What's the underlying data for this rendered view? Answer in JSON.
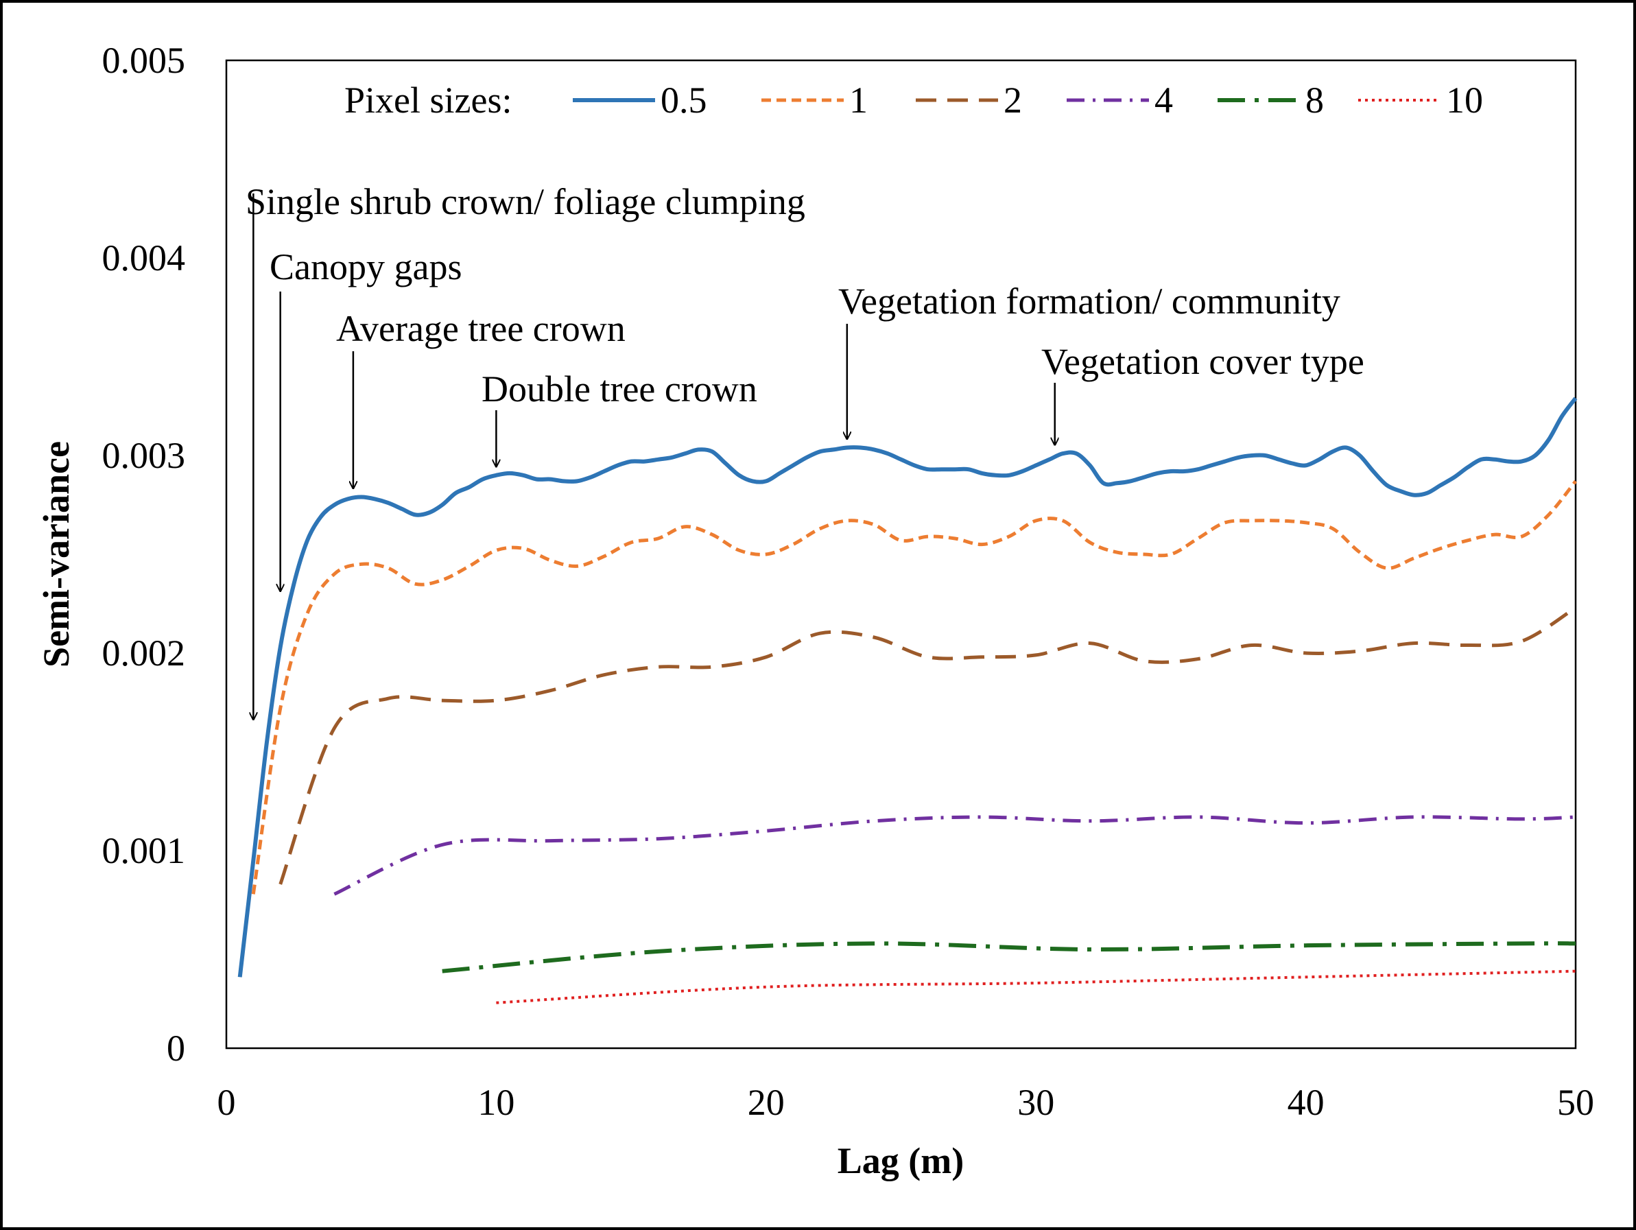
{
  "chart_data": {
    "type": "line",
    "xlabel": "Lag (m)",
    "ylabel": "Semi-variance",
    "xlim": [
      0,
      50
    ],
    "ylim": [
      0,
      0.005
    ],
    "x_ticks": [
      "0",
      "10",
      "20",
      "30",
      "40",
      "50"
    ],
    "y_ticks": [
      "0",
      "0.001",
      "0.002",
      "0.003",
      "0.004",
      "0.005"
    ],
    "grid": false,
    "legend": {
      "title": "Pixel sizes:",
      "placement": "top",
      "entries": [
        "0.5",
        "1",
        "2",
        "4",
        "8",
        "10"
      ]
    },
    "series": [
      {
        "name": "0.5",
        "color": "#2E75B6",
        "style": "solid",
        "x": [
          0.5,
          1.0,
          1.5,
          2.0,
          2.5,
          3.0,
          3.5,
          4.0,
          4.5,
          5.0,
          5.5,
          6.0,
          6.5,
          7.0,
          7.5,
          8.0,
          8.5,
          9.0,
          9.5,
          10.0,
          10.5,
          11.0,
          11.5,
          12.0,
          12.5,
          13.0,
          13.5,
          14.0,
          14.5,
          15.0,
          15.5,
          16.0,
          16.5,
          17.0,
          17.5,
          18.0,
          18.5,
          19.0,
          19.5,
          20.0,
          20.5,
          21.0,
          21.5,
          22.0,
          22.5,
          23.0,
          23.5,
          24.0,
          24.5,
          25.0,
          25.5,
          26.0,
          26.5,
          27.0,
          27.5,
          28.0,
          28.5,
          29.0,
          29.5,
          30.0,
          30.5,
          31.0,
          31.5,
          32.0,
          32.5,
          33.0,
          33.5,
          34.0,
          34.5,
          35.0,
          35.5,
          36.0,
          36.5,
          37.0,
          37.5,
          38.0,
          38.5,
          39.0,
          39.5,
          40.0,
          40.5,
          41.0,
          41.5,
          42.0,
          42.5,
          43.0,
          43.5,
          44.0,
          44.5,
          45.0,
          45.5,
          46.0,
          46.5,
          47.0,
          47.5,
          48.0,
          48.5,
          49.0,
          49.5,
          50.0
        ],
        "y": [
          0.00036,
          0.00095,
          0.00155,
          0.00203,
          0.00235,
          0.00257,
          0.00269,
          0.00275,
          0.00278,
          0.00279,
          0.00278,
          0.00276,
          0.00273,
          0.0027,
          0.00271,
          0.00275,
          0.00281,
          0.00284,
          0.00288,
          0.0029,
          0.00291,
          0.0029,
          0.00288,
          0.00288,
          0.00287,
          0.00287,
          0.00289,
          0.00292,
          0.00295,
          0.00297,
          0.00297,
          0.00298,
          0.00299,
          0.00301,
          0.00303,
          0.00302,
          0.00296,
          0.0029,
          0.00287,
          0.00287,
          0.00291,
          0.00295,
          0.00299,
          0.00302,
          0.00303,
          0.00304,
          0.00304,
          0.00303,
          0.00301,
          0.00298,
          0.00295,
          0.00293,
          0.00293,
          0.00293,
          0.00293,
          0.00291,
          0.0029,
          0.0029,
          0.00292,
          0.00295,
          0.00298,
          0.00301,
          0.00301,
          0.00295,
          0.00286,
          0.00286,
          0.00287,
          0.00289,
          0.00291,
          0.00292,
          0.00292,
          0.00293,
          0.00295,
          0.00297,
          0.00299,
          0.003,
          0.003,
          0.00298,
          0.00296,
          0.00295,
          0.00298,
          0.00302,
          0.00304,
          0.003,
          0.00292,
          0.00285,
          0.00282,
          0.0028,
          0.00281,
          0.00285,
          0.00289,
          0.00294,
          0.00298,
          0.00298,
          0.00297,
          0.00297,
          0.003,
          0.00308,
          0.0032,
          0.00329
        ]
      },
      {
        "name": "1",
        "color": "#ED7D31",
        "style": "short-dash",
        "x": [
          1,
          2,
          3,
          4,
          5,
          6,
          7,
          8,
          9,
          10,
          11,
          12,
          13,
          14,
          15,
          16,
          17,
          18,
          19,
          20,
          21,
          22,
          23,
          24,
          25,
          26,
          27,
          28,
          29,
          30,
          31,
          32,
          33,
          34,
          35,
          36,
          37,
          38,
          39,
          40,
          41,
          42,
          43,
          44,
          45,
          46,
          47,
          48,
          49,
          50
        ],
        "y": [
          0.00078,
          0.00172,
          0.0022,
          0.0024,
          0.00245,
          0.00243,
          0.00235,
          0.00237,
          0.00244,
          0.00252,
          0.00253,
          0.00247,
          0.00244,
          0.00249,
          0.00256,
          0.00258,
          0.00264,
          0.0026,
          0.00252,
          0.0025,
          0.00255,
          0.00263,
          0.00267,
          0.00265,
          0.00257,
          0.00259,
          0.00258,
          0.00255,
          0.00259,
          0.00267,
          0.00267,
          0.00256,
          0.00251,
          0.0025,
          0.0025,
          0.00258,
          0.00266,
          0.00267,
          0.00267,
          0.00266,
          0.00263,
          0.00251,
          0.00243,
          0.00248,
          0.00253,
          0.00257,
          0.0026,
          0.00259,
          0.0027,
          0.00287
        ]
      },
      {
        "name": "2",
        "color": "#9C5A2A",
        "style": "long-dash",
        "x": [
          2,
          4,
          6,
          8,
          10,
          12,
          14,
          16,
          18,
          20,
          22,
          24,
          26,
          28,
          30,
          32,
          34,
          36,
          38,
          40,
          42,
          44,
          46,
          48,
          50
        ],
        "y": [
          0.00083,
          0.00162,
          0.00177,
          0.00176,
          0.00176,
          0.00181,
          0.00189,
          0.00193,
          0.00193,
          0.00198,
          0.0021,
          0.00208,
          0.00198,
          0.00198,
          0.00199,
          0.00205,
          0.00196,
          0.00197,
          0.00204,
          0.002,
          0.00201,
          0.00205,
          0.00204,
          0.00206,
          0.00223
        ]
      },
      {
        "name": "4",
        "color": "#7030A0",
        "style": "dash-dot",
        "x": [
          4,
          8,
          12,
          16,
          20,
          24,
          28,
          32,
          36,
          40,
          44,
          48,
          50
        ],
        "y": [
          0.00078,
          0.00103,
          0.00105,
          0.00106,
          0.0011,
          0.00115,
          0.00117,
          0.00115,
          0.00117,
          0.00114,
          0.00117,
          0.00116,
          0.00117
        ]
      },
      {
        "name": "8",
        "color": "#1E6B1E",
        "style": "long-dash-dot",
        "x": [
          8,
          16,
          24,
          32,
          40,
          48,
          50
        ],
        "y": [
          0.00039,
          0.00049,
          0.00053,
          0.0005,
          0.00052,
          0.00053,
          0.00053
        ]
      },
      {
        "name": "10",
        "color": "#E02020",
        "style": "dotted",
        "x": [
          10,
          20,
          30,
          40,
          50
        ],
        "y": [
          0.00023,
          0.00031,
          0.00033,
          0.00036,
          0.00039
        ]
      }
    ],
    "annotations": [
      {
        "text": "Single shrub crown/ foliage clumping",
        "x": 1.0,
        "y": 0.00165
      },
      {
        "text": "Canopy gaps",
        "x": 2.0,
        "y": 0.0023
      },
      {
        "text": "Average tree crown",
        "x": 4.7,
        "y": 0.00282
      },
      {
        "text": "Double tree crown",
        "x": 10.0,
        "y": 0.00293
      },
      {
        "text": "Vegetation formation/ community",
        "x": 23.0,
        "y": 0.00307
      },
      {
        "text": "Vegetation cover type",
        "x": 30.7,
        "y": 0.00304
      }
    ]
  }
}
